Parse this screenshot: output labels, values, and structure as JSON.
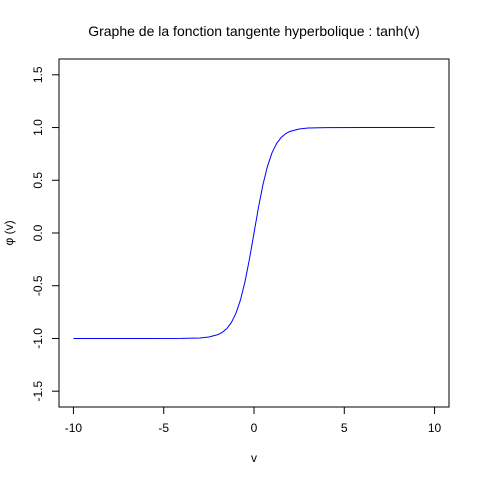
{
  "chart_data": {
    "type": "line",
    "title": "Graphe de la fonction tangente hyperbolique :  tanh(v)",
    "xlabel": "v",
    "ylabel": "φ (v)",
    "xlim": [
      -10.8,
      10.8
    ],
    "ylim": [
      -1.65,
      1.65
    ],
    "grid": false,
    "x_ticks": [
      -10,
      -5,
      0,
      5,
      10
    ],
    "x_tick_labels": [
      "-10",
      "-5",
      "0",
      "5",
      "10"
    ],
    "y_ticks": [
      -1.5,
      -1.0,
      -0.5,
      0.0,
      0.5,
      1.0,
      1.5
    ],
    "y_tick_labels": [
      "-1.5",
      "-1.0",
      "-0.5",
      "0.0",
      "0.5",
      "1.0",
      "1.5"
    ],
    "line_color": "#0000ff",
    "series": [
      {
        "x": [
          -10,
          -8,
          -6,
          -4,
          -3,
          -2.5,
          -2,
          -1.75,
          -1.5,
          -1.25,
          -1,
          -0.75,
          -0.5,
          -0.25,
          0,
          0.25,
          0.5,
          0.75,
          1,
          1.25,
          1.5,
          1.75,
          2,
          2.5,
          3,
          4,
          6,
          8,
          10
        ],
        "values": [
          -1.0,
          -1.0,
          -1.0,
          -0.9993,
          -0.9951,
          -0.9866,
          -0.964,
          -0.9413,
          -0.9051,
          -0.8483,
          -0.7616,
          -0.6351,
          -0.4621,
          -0.2449,
          0.0,
          0.2449,
          0.4621,
          0.6351,
          0.7616,
          0.8483,
          0.9051,
          0.9413,
          0.964,
          0.9866,
          0.9951,
          0.9993,
          1.0,
          1.0,
          1.0
        ]
      }
    ]
  }
}
